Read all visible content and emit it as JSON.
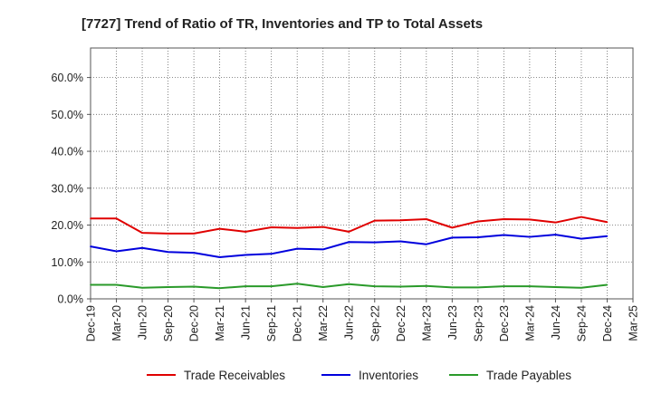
{
  "chart_data": {
    "type": "line",
    "title": "[7727]  Trend of Ratio of TR, Inventories and TP to Total Assets",
    "xlabel": "",
    "ylabel": "",
    "ylim": [
      0,
      0.68
    ],
    "yticks": [
      0,
      0.1,
      0.2,
      0.3,
      0.4,
      0.5,
      0.6
    ],
    "ytick_labels": [
      "0.0%",
      "10.0%",
      "20.0%",
      "30.0%",
      "40.0%",
      "50.0%",
      "60.0%"
    ],
    "x_tick_labels": [
      "Dec-19",
      "Mar-20",
      "Jun-20",
      "Sep-20",
      "Dec-20",
      "Mar-21",
      "Jun-21",
      "Sep-21",
      "Dec-21",
      "Mar-22",
      "Jun-22",
      "Sep-22",
      "Dec-22",
      "Mar-23",
      "Jun-23",
      "Sep-23",
      "Dec-23",
      "Mar-24",
      "Jun-24",
      "Sep-24",
      "Dec-24",
      "Mar-25"
    ],
    "x": [
      "Dec-19",
      "Mar-20",
      "Jun-20",
      "Sep-20",
      "Dec-20",
      "Mar-21",
      "Jun-21",
      "Sep-21",
      "Dec-21",
      "Mar-22",
      "Jun-22",
      "Sep-22",
      "Dec-22",
      "Mar-23",
      "Jun-23",
      "Sep-23",
      "Dec-23",
      "Mar-24",
      "Jun-24",
      "Sep-24",
      "Dec-24"
    ],
    "grid": true,
    "legend_position": "bottom",
    "series": [
      {
        "name": "Trade Receivables",
        "color": "#e00000",
        "values": [
          0.218,
          0.218,
          0.179,
          0.177,
          0.177,
          0.19,
          0.182,
          0.194,
          0.192,
          0.195,
          0.182,
          0.212,
          0.213,
          0.216,
          0.193,
          0.21,
          0.216,
          0.215,
          0.207,
          0.222,
          0.208
        ]
      },
      {
        "name": "Inventories",
        "color": "#0000dd",
        "values": [
          0.142,
          0.129,
          0.138,
          0.127,
          0.125,
          0.113,
          0.119,
          0.122,
          0.136,
          0.134,
          0.154,
          0.153,
          0.156,
          0.148,
          0.166,
          0.167,
          0.173,
          0.168,
          0.174,
          0.163,
          0.17
        ]
      },
      {
        "name": "Trade Payables",
        "color": "#2a9a2a",
        "values": [
          0.038,
          0.038,
          0.03,
          0.032,
          0.033,
          0.029,
          0.034,
          0.034,
          0.041,
          0.032,
          0.04,
          0.034,
          0.033,
          0.035,
          0.031,
          0.031,
          0.034,
          0.034,
          0.032,
          0.03,
          0.038
        ]
      }
    ]
  }
}
